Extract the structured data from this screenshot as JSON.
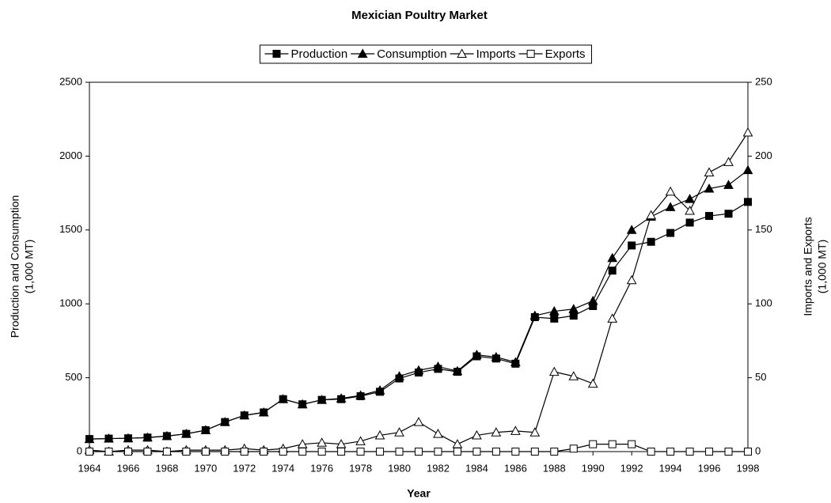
{
  "chart_data": {
    "type": "line",
    "title": "Mexician Poultry Market",
    "xlabel": "Year",
    "ylabel": [
      "Production and Consumption",
      "(1,000 MT)"
    ],
    "y2label": [
      "Imports and Exports",
      "(1,000 MT)"
    ],
    "x": [
      1964,
      1965,
      1966,
      1967,
      1968,
      1969,
      1970,
      1971,
      1972,
      1973,
      1974,
      1975,
      1976,
      1977,
      1978,
      1979,
      1980,
      1981,
      1982,
      1983,
      1984,
      1985,
      1986,
      1987,
      1988,
      1989,
      1990,
      1991,
      1992,
      1993,
      1994,
      1995,
      1996,
      1997,
      1998
    ],
    "xlim": [
      1964,
      1998
    ],
    "xticks": [
      1964,
      1966,
      1968,
      1970,
      1972,
      1974,
      1976,
      1978,
      1980,
      1982,
      1984,
      1986,
      1988,
      1990,
      1992,
      1994,
      1996,
      1998
    ],
    "ylim": [
      0,
      2500
    ],
    "yticks": [
      0,
      500,
      1000,
      1500,
      2000,
      2500
    ],
    "y2lim": [
      0,
      250
    ],
    "y2ticks": [
      0,
      50,
      100,
      150,
      200,
      250
    ],
    "legend": "top",
    "series": [
      {
        "name": "Production",
        "color": "#000000",
        "marker": "square-filled",
        "values": [
          85,
          88,
          90,
          95,
          105,
          120,
          145,
          200,
          245,
          265,
          355,
          320,
          350,
          355,
          375,
          405,
          495,
          535,
          560,
          540,
          645,
          630,
          595,
          910,
          900,
          920,
          985,
          1225,
          1395,
          1420,
          1480,
          1550,
          1595,
          1610,
          1690
        ]
      },
      {
        "name": "Consumption",
        "color": "#000000",
        "marker": "triangle-filled",
        "values": [
          85,
          88,
          90,
          95,
          105,
          120,
          145,
          200,
          245,
          265,
          355,
          320,
          350,
          360,
          380,
          415,
          510,
          550,
          575,
          545,
          655,
          640,
          605,
          920,
          950,
          965,
          1020,
          1310,
          1500,
          1590,
          1655,
          1710,
          1780,
          1805,
          1905
        ]
      },
      {
        "name": "Imports",
        "color": "#000000",
        "marker": "triangle-open",
        "axis": "y2",
        "values": [
          1,
          0,
          1,
          1,
          0,
          1,
          1,
          1,
          2,
          1,
          2,
          5,
          6,
          5,
          7,
          11,
          13,
          20,
          12,
          5,
          11,
          13,
          14,
          13,
          54,
          51,
          46,
          90,
          116,
          160,
          176,
          163,
          189,
          196,
          216
        ]
      },
      {
        "name": "Exports",
        "color": "#000000",
        "marker": "square-open",
        "axis": "y2",
        "values": [
          0,
          0,
          0,
          0,
          0,
          0,
          0,
          0,
          0,
          0,
          0,
          0,
          0,
          0,
          0,
          0,
          0,
          0,
          0,
          0,
          0,
          0,
          0,
          0,
          0,
          2,
          5,
          5,
          5,
          0,
          0,
          0,
          0,
          0,
          0
        ]
      }
    ]
  }
}
